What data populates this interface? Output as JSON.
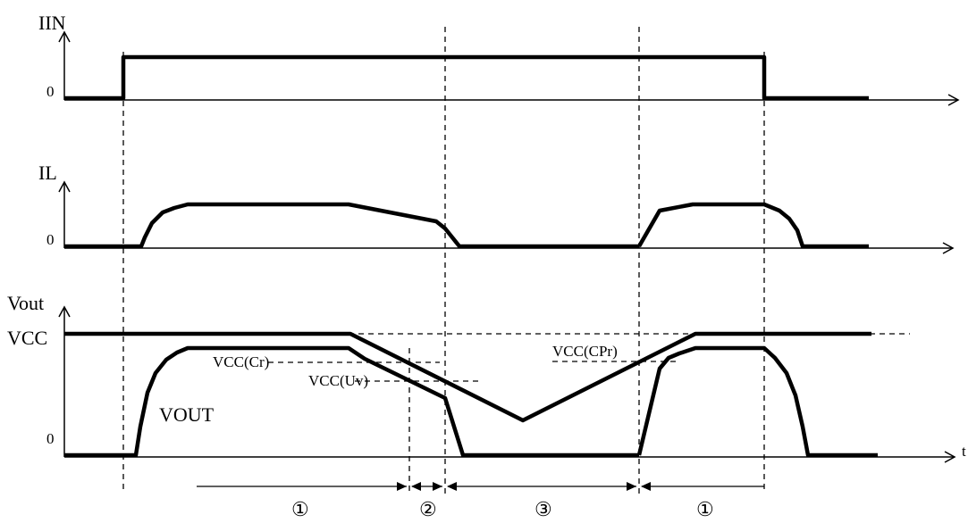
{
  "labels": {
    "iin": "IIN",
    "il": "IL",
    "vout_axis": "Vout",
    "vcc": "VCC",
    "vout_signal": "VOUT",
    "zero": "0",
    "time": "t",
    "vcc_cr": "VCC(Cr)",
    "vcc_uv": "VCC(Uv)",
    "vcc_cpr": "VCC(CPr)"
  },
  "phases": {
    "p1a": "①",
    "p2": "②",
    "p3": "③",
    "p1b": "①"
  }
}
